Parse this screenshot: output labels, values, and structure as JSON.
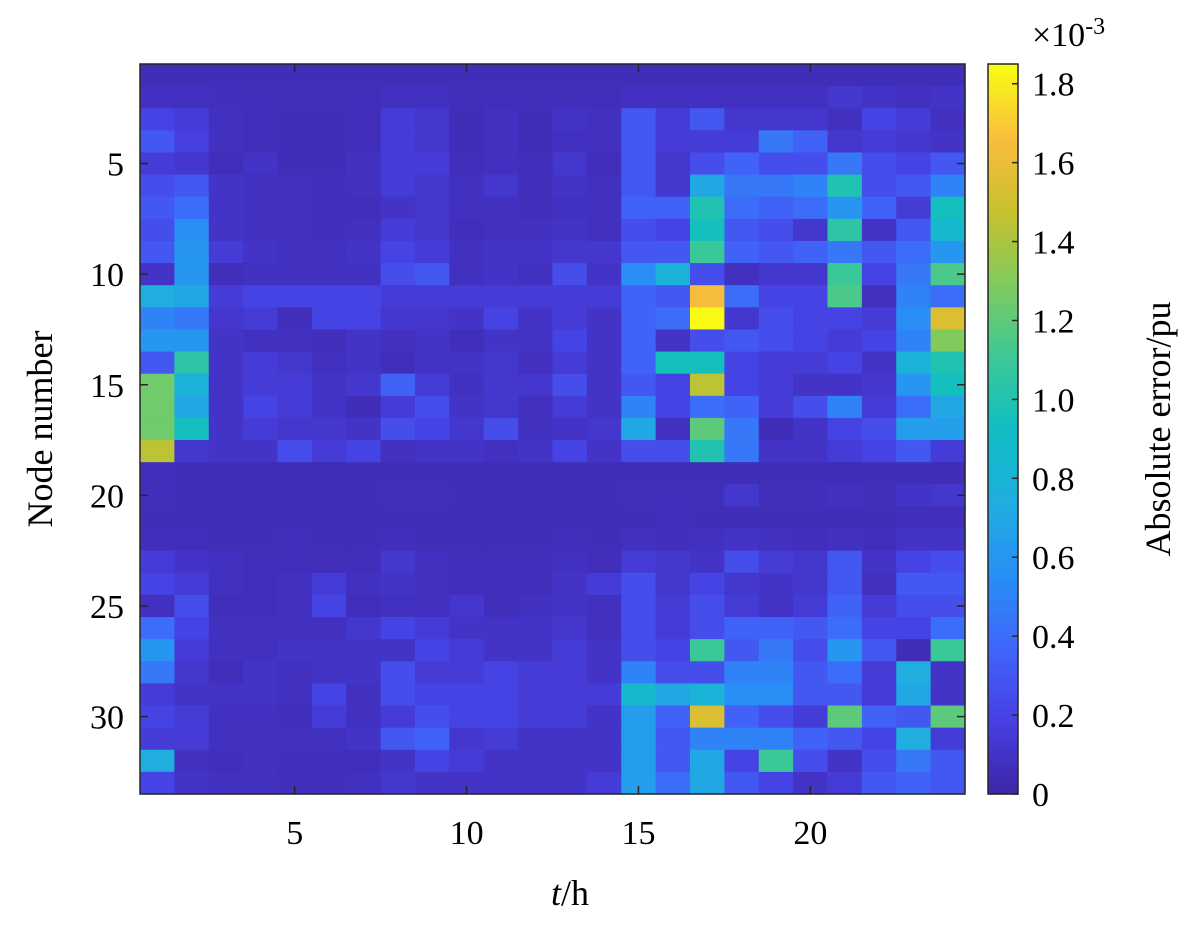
{
  "chart_data": {
    "type": "heatmap",
    "xlabel_var": "t",
    "xlabel_unit": "/h",
    "ylabel": "Node number",
    "colorbar_label": "Absolute error/pu",
    "colorbar_exponent": "×10-3",
    "colormap": "parula",
    "x_range": [
      1,
      24
    ],
    "y_range": [
      1,
      33
    ],
    "x_ticks": [
      5,
      10,
      15,
      20
    ],
    "y_ticks": [
      5,
      10,
      15,
      20,
      25,
      30
    ],
    "color_limits": [
      0,
      1.85
    ],
    "colorbar_ticks": [
      "0",
      "0.2",
      "0.4",
      "0.6",
      "0.8",
      "1.0",
      "1.2",
      "1.4",
      "1.6",
      "1.8"
    ],
    "colorbar_tick_values": [
      0,
      0.2,
      0.4,
      0.6,
      0.8,
      1.0,
      1.2,
      1.4,
      1.6,
      1.8
    ],
    "values": [
      [
        0.05,
        0.05,
        0.05,
        0.05,
        0.05,
        0.05,
        0.05,
        0.05,
        0.05,
        0.05,
        0.05,
        0.05,
        0.05,
        0.05,
        0.05,
        0.05,
        0.05,
        0.05,
        0.05,
        0.05,
        0.05,
        0.05,
        0.05,
        0.05
      ],
      [
        0.08,
        0.08,
        0.07,
        0.06,
        0.06,
        0.06,
        0.06,
        0.08,
        0.08,
        0.06,
        0.06,
        0.06,
        0.06,
        0.06,
        0.08,
        0.08,
        0.08,
        0.08,
        0.08,
        0.08,
        0.12,
        0.1,
        0.08,
        0.1
      ],
      [
        0.2,
        0.15,
        0.08,
        0.06,
        0.05,
        0.05,
        0.06,
        0.15,
        0.12,
        0.05,
        0.08,
        0.05,
        0.1,
        0.08,
        0.3,
        0.15,
        0.3,
        0.12,
        0.12,
        0.12,
        0.08,
        0.2,
        0.15,
        0.08
      ],
      [
        0.3,
        0.18,
        0.08,
        0.06,
        0.05,
        0.05,
        0.06,
        0.15,
        0.12,
        0.05,
        0.08,
        0.05,
        0.08,
        0.08,
        0.3,
        0.15,
        0.15,
        0.15,
        0.45,
        0.35,
        0.12,
        0.15,
        0.12,
        0.1
      ],
      [
        0.15,
        0.12,
        0.06,
        0.1,
        0.05,
        0.05,
        0.08,
        0.15,
        0.15,
        0.06,
        0.08,
        0.06,
        0.12,
        0.06,
        0.3,
        0.12,
        0.25,
        0.35,
        0.25,
        0.25,
        0.45,
        0.25,
        0.2,
        0.3
      ],
      [
        0.25,
        0.3,
        0.1,
        0.08,
        0.08,
        0.06,
        0.08,
        0.15,
        0.12,
        0.08,
        0.12,
        0.06,
        0.1,
        0.08,
        0.3,
        0.12,
        0.7,
        0.45,
        0.45,
        0.5,
        1.0,
        0.25,
        0.3,
        0.5
      ],
      [
        0.3,
        0.4,
        0.1,
        0.08,
        0.08,
        0.06,
        0.06,
        0.1,
        0.12,
        0.08,
        0.08,
        0.06,
        0.08,
        0.08,
        0.35,
        0.35,
        1.0,
        0.4,
        0.35,
        0.4,
        0.6,
        0.35,
        0.15,
        0.95
      ],
      [
        0.25,
        0.55,
        0.1,
        0.08,
        0.08,
        0.06,
        0.08,
        0.15,
        0.12,
        0.06,
        0.08,
        0.08,
        0.1,
        0.08,
        0.25,
        0.2,
        0.95,
        0.3,
        0.25,
        0.12,
        1.05,
        0.1,
        0.3,
        0.85
      ],
      [
        0.3,
        0.6,
        0.15,
        0.1,
        0.08,
        0.08,
        0.1,
        0.2,
        0.15,
        0.08,
        0.1,
        0.1,
        0.12,
        0.12,
        0.3,
        0.3,
        1.1,
        0.35,
        0.3,
        0.35,
        0.45,
        0.3,
        0.4,
        0.6
      ],
      [
        0.1,
        0.6,
        0.06,
        0.08,
        0.08,
        0.08,
        0.08,
        0.25,
        0.3,
        0.08,
        0.1,
        0.08,
        0.25,
        0.1,
        0.55,
        0.8,
        0.25,
        0.08,
        0.12,
        0.12,
        1.1,
        0.2,
        0.45,
        1.15
      ],
      [
        0.75,
        0.7,
        0.15,
        0.2,
        0.2,
        0.2,
        0.2,
        0.15,
        0.15,
        0.15,
        0.15,
        0.15,
        0.15,
        0.15,
        0.35,
        0.3,
        1.65,
        0.4,
        0.2,
        0.2,
        1.15,
        0.08,
        0.5,
        0.4
      ],
      [
        0.5,
        0.45,
        0.12,
        0.15,
        0.06,
        0.2,
        0.2,
        0.12,
        0.12,
        0.1,
        0.2,
        0.1,
        0.15,
        0.1,
        0.35,
        0.4,
        1.85,
        0.12,
        0.25,
        0.2,
        0.2,
        0.15,
        0.55,
        1.55
      ],
      [
        0.6,
        0.6,
        0.1,
        0.08,
        0.08,
        0.06,
        0.1,
        0.08,
        0.1,
        0.06,
        0.1,
        0.1,
        0.2,
        0.1,
        0.35,
        0.1,
        0.25,
        0.3,
        0.25,
        0.2,
        0.15,
        0.2,
        0.5,
        1.3
      ],
      [
        0.3,
        1.05,
        0.1,
        0.15,
        0.12,
        0.08,
        0.1,
        0.06,
        0.1,
        0.1,
        0.12,
        0.08,
        0.15,
        0.1,
        0.35,
        0.95,
        0.95,
        0.2,
        0.15,
        0.15,
        0.2,
        0.1,
        0.8,
        1.0
      ],
      [
        1.25,
        0.8,
        0.1,
        0.15,
        0.15,
        0.1,
        0.12,
        0.35,
        0.15,
        0.08,
        0.12,
        0.12,
        0.25,
        0.1,
        0.3,
        0.2,
        1.45,
        0.2,
        0.15,
        0.1,
        0.1,
        0.12,
        0.6,
        0.95
      ],
      [
        1.25,
        0.7,
        0.1,
        0.2,
        0.15,
        0.1,
        0.05,
        0.15,
        0.25,
        0.1,
        0.12,
        0.08,
        0.15,
        0.1,
        0.5,
        0.2,
        0.4,
        0.35,
        0.15,
        0.25,
        0.5,
        0.15,
        0.4,
        0.7
      ],
      [
        1.25,
        0.95,
        0.1,
        0.15,
        0.12,
        0.12,
        0.1,
        0.25,
        0.2,
        0.12,
        0.25,
        0.08,
        0.1,
        0.12,
        0.7,
        0.08,
        1.2,
        0.45,
        0.05,
        0.1,
        0.2,
        0.25,
        0.65,
        0.65
      ],
      [
        1.45,
        0.12,
        0.1,
        0.1,
        0.25,
        0.15,
        0.2,
        0.08,
        0.1,
        0.1,
        0.08,
        0.1,
        0.2,
        0.1,
        0.25,
        0.25,
        1.0,
        0.45,
        0.1,
        0.1,
        0.15,
        0.2,
        0.3,
        0.15
      ],
      [
        0.06,
        0.05,
        0.05,
        0.05,
        0.05,
        0.05,
        0.05,
        0.05,
        0.05,
        0.05,
        0.05,
        0.05,
        0.05,
        0.05,
        0.05,
        0.05,
        0.05,
        0.05,
        0.05,
        0.05,
        0.05,
        0.05,
        0.05,
        0.05
      ],
      [
        0.06,
        0.05,
        0.05,
        0.05,
        0.05,
        0.05,
        0.05,
        0.06,
        0.06,
        0.05,
        0.05,
        0.05,
        0.05,
        0.05,
        0.06,
        0.06,
        0.06,
        0.12,
        0.06,
        0.06,
        0.08,
        0.06,
        0.1,
        0.12
      ],
      [
        0.05,
        0.05,
        0.05,
        0.05,
        0.05,
        0.05,
        0.05,
        0.05,
        0.05,
        0.05,
        0.05,
        0.05,
        0.05,
        0.05,
        0.05,
        0.06,
        0.05,
        0.05,
        0.05,
        0.05,
        0.05,
        0.05,
        0.06,
        0.06
      ],
      [
        0.06,
        0.06,
        0.05,
        0.05,
        0.06,
        0.05,
        0.05,
        0.06,
        0.05,
        0.05,
        0.05,
        0.05,
        0.06,
        0.05,
        0.08,
        0.06,
        0.08,
        0.1,
        0.08,
        0.06,
        0.08,
        0.06,
        0.1,
        0.1
      ],
      [
        0.15,
        0.1,
        0.08,
        0.06,
        0.06,
        0.06,
        0.06,
        0.12,
        0.08,
        0.06,
        0.06,
        0.06,
        0.08,
        0.06,
        0.15,
        0.12,
        0.1,
        0.25,
        0.15,
        0.12,
        0.3,
        0.1,
        0.2,
        0.25
      ],
      [
        0.2,
        0.15,
        0.08,
        0.06,
        0.08,
        0.15,
        0.08,
        0.1,
        0.08,
        0.06,
        0.06,
        0.06,
        0.1,
        0.15,
        0.25,
        0.12,
        0.2,
        0.12,
        0.1,
        0.12,
        0.3,
        0.08,
        0.3,
        0.3
      ],
      [
        0.08,
        0.25,
        0.06,
        0.06,
        0.08,
        0.2,
        0.06,
        0.08,
        0.08,
        0.12,
        0.06,
        0.08,
        0.1,
        0.08,
        0.25,
        0.15,
        0.25,
        0.15,
        0.1,
        0.15,
        0.35,
        0.15,
        0.25,
        0.25
      ],
      [
        0.4,
        0.2,
        0.08,
        0.08,
        0.08,
        0.08,
        0.12,
        0.2,
        0.15,
        0.1,
        0.1,
        0.1,
        0.12,
        0.08,
        0.25,
        0.15,
        0.25,
        0.35,
        0.35,
        0.3,
        0.4,
        0.2,
        0.2,
        0.4
      ],
      [
        0.6,
        0.15,
        0.08,
        0.08,
        0.1,
        0.1,
        0.1,
        0.1,
        0.2,
        0.15,
        0.1,
        0.1,
        0.15,
        0.1,
        0.25,
        0.2,
        1.1,
        0.3,
        0.45,
        0.25,
        0.6,
        0.3,
        0.05,
        1.1
      ],
      [
        0.45,
        0.12,
        0.06,
        0.1,
        0.08,
        0.1,
        0.1,
        0.25,
        0.15,
        0.15,
        0.2,
        0.15,
        0.15,
        0.1,
        0.5,
        0.25,
        0.25,
        0.5,
        0.5,
        0.3,
        0.4,
        0.15,
        0.75,
        0.1
      ],
      [
        0.15,
        0.1,
        0.1,
        0.1,
        0.08,
        0.2,
        0.08,
        0.25,
        0.2,
        0.2,
        0.2,
        0.15,
        0.15,
        0.15,
        0.85,
        0.7,
        0.8,
        0.55,
        0.55,
        0.3,
        0.3,
        0.15,
        0.7,
        0.1
      ],
      [
        0.2,
        0.15,
        0.08,
        0.08,
        0.06,
        0.15,
        0.08,
        0.15,
        0.25,
        0.2,
        0.2,
        0.15,
        0.15,
        0.1,
        0.65,
        0.35,
        1.55,
        0.35,
        0.25,
        0.15,
        1.2,
        0.35,
        0.3,
        1.2
      ],
      [
        0.15,
        0.15,
        0.08,
        0.08,
        0.08,
        0.08,
        0.1,
        0.3,
        0.35,
        0.12,
        0.15,
        0.1,
        0.1,
        0.1,
        0.65,
        0.3,
        0.5,
        0.5,
        0.5,
        0.35,
        0.3,
        0.2,
        0.75,
        0.15
      ],
      [
        0.75,
        0.08,
        0.06,
        0.08,
        0.06,
        0.06,
        0.06,
        0.1,
        0.2,
        0.15,
        0.1,
        0.1,
        0.1,
        0.1,
        0.65,
        0.3,
        0.7,
        0.2,
        1.1,
        0.25,
        0.1,
        0.25,
        0.45,
        0.3
      ],
      [
        0.2,
        0.1,
        0.08,
        0.08,
        0.06,
        0.06,
        0.08,
        0.12,
        0.1,
        0.1,
        0.1,
        0.1,
        0.1,
        0.15,
        0.65,
        0.4,
        0.7,
        0.3,
        0.2,
        0.1,
        0.15,
        0.3,
        0.35,
        0.3
      ]
    ]
  }
}
